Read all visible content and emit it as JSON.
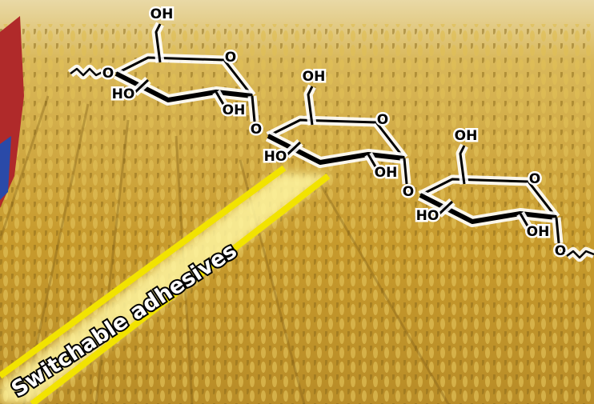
{
  "banner": "Switchable adhesives",
  "start_oxygen": "O",
  "sugars": [
    {
      "hydroxyl_top": "OH",
      "ring_oxygen": "O",
      "hydroxyl_left": "HO",
      "hydroxyl_right": "OH",
      "link_oxygen": "O"
    },
    {
      "hydroxyl_top": "OH",
      "ring_oxygen": "O",
      "hydroxyl_left": "HO",
      "hydroxyl_right": "OH",
      "link_oxygen": "O"
    },
    {
      "hydroxyl_top": "OH",
      "ring_oxygen": "O",
      "hydroxyl_left": "HO",
      "hydroxyl_right": "OH",
      "link_oxygen": "O"
    }
  ]
}
